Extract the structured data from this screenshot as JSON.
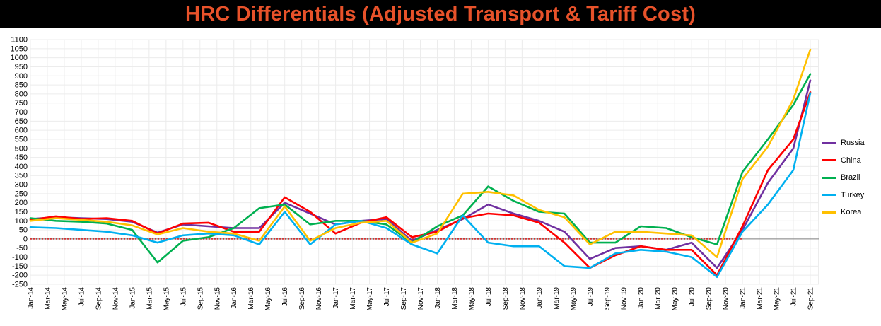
{
  "chart_data": {
    "type": "line",
    "title": "HRC Differentials (Adjusted Transport & Tariff Cost)",
    "xlabel": "",
    "ylabel": "",
    "ylim": [
      -250,
      1100
    ],
    "yticks": [
      -250,
      -200,
      -150,
      -100,
      -50,
      0,
      50,
      100,
      150,
      200,
      250,
      300,
      350,
      400,
      450,
      500,
      550,
      600,
      650,
      700,
      750,
      800,
      850,
      900,
      950,
      1000,
      1050,
      1100
    ],
    "xlim": [
      "2014-01",
      "2021-10"
    ],
    "xticks": [
      "Jan-14",
      "Mar-14",
      "May-14",
      "Jul-14",
      "Sep-14",
      "Nov-14",
      "Jan-15",
      "Mar-15",
      "May-15",
      "Jul-15",
      "Sep-15",
      "Nov-15",
      "Jan-16",
      "Mar-16",
      "May-16",
      "Jul-16",
      "Sep-16",
      "Nov-16",
      "Jan-17",
      "Mar-17",
      "May-17",
      "Jul-17",
      "Sep-17",
      "Nov-17",
      "Jan-18",
      "Mar-18",
      "May-18",
      "Jul-18",
      "Sep-18",
      "Nov-18",
      "Jan-19",
      "Mar-19",
      "May-19",
      "Jul-19",
      "Sep-19",
      "Nov-19",
      "Jan-20",
      "Mar-20",
      "May-20",
      "Jul-20",
      "Sep-20",
      "Nov-20",
      "Jan-21",
      "Mar-21",
      "May-21",
      "Jul-21",
      "Sep-21"
    ],
    "grid": true,
    "zero_line": {
      "value": 0,
      "color": "#cc0000",
      "style": "dotted"
    },
    "legend_position": "right",
    "x": [
      "2014-01",
      "2014-04",
      "2014-07",
      "2014-10",
      "2015-01",
      "2015-04",
      "2015-07",
      "2015-10",
      "2016-01",
      "2016-04",
      "2016-07",
      "2016-10",
      "2017-01",
      "2017-04",
      "2017-07",
      "2017-10",
      "2018-01",
      "2018-04",
      "2018-07",
      "2018-10",
      "2019-01",
      "2019-04",
      "2019-07",
      "2019-10",
      "2020-01",
      "2020-04",
      "2020-07",
      "2020-10",
      "2021-01",
      "2021-04",
      "2021-07",
      "2021-09"
    ],
    "series": [
      {
        "name": "Russia",
        "color": "#7030a0",
        "values": [
          110,
          120,
          115,
          110,
          95,
          35,
          80,
          70,
          60,
          60,
          200,
          140,
          80,
          100,
          110,
          -10,
          50,
          110,
          190,
          140,
          100,
          40,
          -110,
          -50,
          -40,
          -60,
          -20,
          -160,
          50,
          310,
          500,
          875
        ]
      },
      {
        "name": "China",
        "color": "#ff0000",
        "values": [
          105,
          125,
          110,
          115,
          100,
          30,
          85,
          90,
          40,
          40,
          230,
          150,
          30,
          90,
          120,
          10,
          40,
          115,
          140,
          130,
          90,
          -20,
          -160,
          -90,
          -40,
          -60,
          -60,
          -200,
          70,
          380,
          550,
          810
        ]
      },
      {
        "name": "Brazil",
        "color": "#00b050",
        "values": [
          115,
          100,
          95,
          85,
          50,
          -130,
          -10,
          10,
          60,
          170,
          190,
          80,
          100,
          100,
          80,
          -20,
          70,
          130,
          290,
          210,
          150,
          140,
          -20,
          -20,
          70,
          60,
          10,
          -30,
          370,
          550,
          740,
          910
        ]
      },
      {
        "name": "Turkey",
        "color": "#00b0f0",
        "values": [
          65,
          60,
          50,
          40,
          20,
          -20,
          20,
          30,
          20,
          -30,
          150,
          -30,
          80,
          100,
          60,
          -30,
          -80,
          130,
          -20,
          -40,
          -40,
          -150,
          -160,
          -80,
          -60,
          -70,
          -100,
          -210,
          40,
          190,
          380,
          805
        ]
      },
      {
        "name": "Korea",
        "color": "#ffc000",
        "values": [
          100,
          115,
          105,
          95,
          75,
          25,
          60,
          40,
          30,
          -10,
          180,
          -10,
          60,
          90,
          100,
          -20,
          30,
          250,
          260,
          240,
          160,
          120,
          -30,
          40,
          40,
          30,
          20,
          -100,
          330,
          510,
          770,
          1045
        ]
      }
    ]
  }
}
